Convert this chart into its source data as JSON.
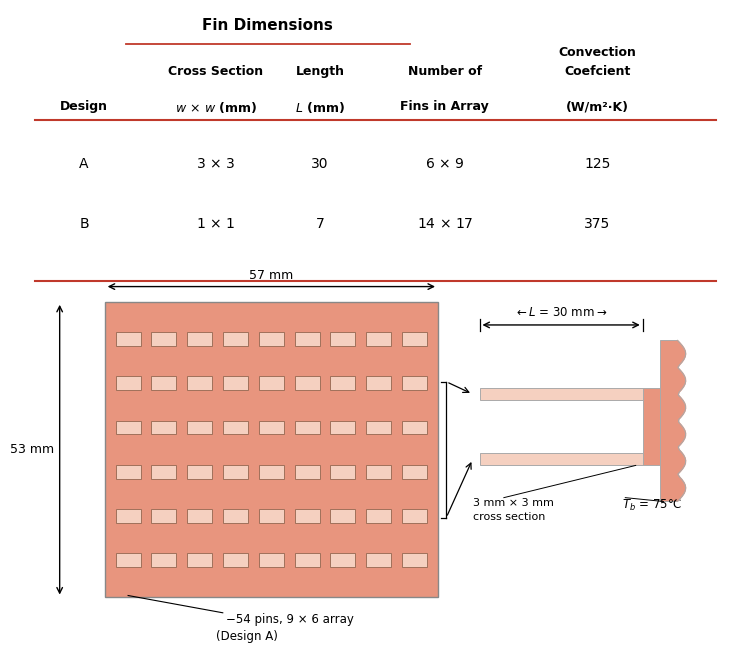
{
  "fin_dim_label": "Fin Dimensions",
  "col_header_1a": "Cross Section",
  "col_header_1b": "Length",
  "col_header_1c": "Number of",
  "col_header_1d": "Convection",
  "col_header_2a": "w × w (mm)",
  "col_header_2b": "L (mm)",
  "col_header_2c": "Fins in Array",
  "col_header_2d": "Coefcient",
  "col_header_2e": "(W/m²·K)",
  "col_design": "Design",
  "row_A": [
    "A",
    "3 × 3",
    "30",
    "6 × 9",
    "125"
  ],
  "row_B": [
    "B",
    "1 × 1",
    "7",
    "14 × 17",
    "375"
  ],
  "base_color": "#E8957E",
  "fin_color": "#F5D0C0",
  "fin_edge_color": "#A0705A",
  "chip_color": "#E8957E",
  "chip_edge_color": "#C07060",
  "bg_color": "#ffffff",
  "line_color": "#C0392B",
  "dim_color": "#555555",
  "width_label": "57 mm",
  "height_label": "53 mm",
  "L_label": "←L = 30 mm→",
  "cross_label1": "3 mm × 3 mm",
  "cross_label2": "cross section",
  "T_b_label": "T_b = 75°C",
  "bottom_label1": "−54 pins, 9 × 6 array",
  "bottom_label2": "(Design A)",
  "fins_cols": 9,
  "fins_rows": 6
}
